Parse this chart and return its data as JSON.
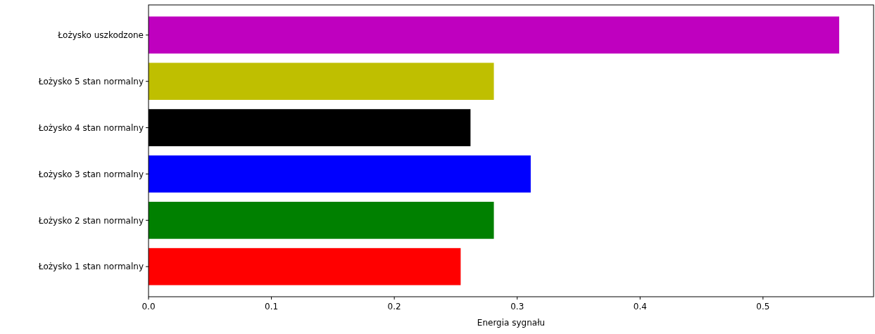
{
  "chart_data": {
    "type": "bar",
    "orientation": "horizontal",
    "xlabel": "Energia sygnału",
    "categories": [
      "Łożysko uszkodzone",
      "Łożysko 5 stan normalny",
      "Łożysko 4 stan normalny",
      "Łożysko 3 stan normalny",
      "Łożysko 2 stan normalny",
      "Łożysko 1 stan normalny"
    ],
    "values": [
      0.562,
      0.281,
      0.262,
      0.311,
      0.281,
      0.254
    ],
    "colors": [
      "#bf00bf",
      "#bfbf00",
      "#000000",
      "#0000ff",
      "#008000",
      "#ff0000"
    ],
    "xlim": [
      0,
      0.59
    ],
    "xticks": [
      {
        "value": 0,
        "label": "0.0"
      },
      {
        "value": 0.1,
        "label": "0.1"
      },
      {
        "value": 0.2,
        "label": "0.2"
      },
      {
        "value": 0.3,
        "label": "0.3"
      },
      {
        "value": 0.4,
        "label": "0.4"
      },
      {
        "value": 0.5,
        "label": "0.5"
      }
    ],
    "grid": false
  }
}
